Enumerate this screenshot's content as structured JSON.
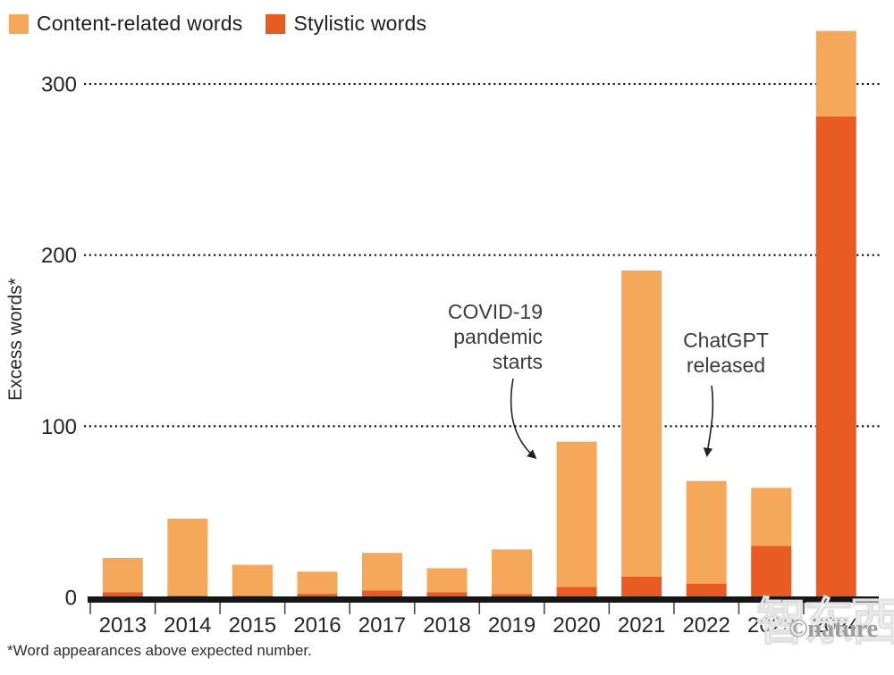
{
  "chart_data": {
    "type": "bar",
    "stacked": true,
    "title": "",
    "categories": [
      "2013",
      "2014",
      "2015",
      "2016",
      "2017",
      "2018",
      "2019",
      "2020",
      "2021",
      "2022",
      "2023",
      "2024"
    ],
    "series": [
      {
        "name": "Content-related words",
        "color": "#F6A85A",
        "values": [
          20,
          45,
          18,
          13,
          22,
          14,
          26,
          85,
          179,
          60,
          34,
          50
        ]
      },
      {
        "name": "Stylistic words",
        "color": "#E85C23",
        "values": [
          3,
          1,
          1,
          2,
          4,
          3,
          2,
          6,
          12,
          8,
          30,
          281
        ]
      }
    ],
    "xlabel": "",
    "ylabel": "Excess words*",
    "ylim": [
      0,
      345
    ],
    "yticks": [
      0,
      100,
      200,
      300
    ],
    "ytick_labels": [
      "0",
      "100",
      "200",
      "300"
    ],
    "grid": "dotted-horizontal",
    "legend_position": "top-left",
    "annotations": [
      {
        "id": "covid",
        "lines": [
          "COVID-19",
          "pandemic",
          "starts"
        ],
        "target_year": "2020"
      },
      {
        "id": "chatgpt",
        "lines": [
          "ChatGPT",
          "released"
        ],
        "target_year": "2022"
      }
    ],
    "footnote": "*Word appearances above expected number."
  },
  "watermark": {
    "cn": "智东西",
    "credit": "©nature"
  },
  "colors": {
    "axis": "#161616",
    "grid": "#161616",
    "tick": "#4a4a4a",
    "label_text": "#262626",
    "annotation_text": "#3c3c3c",
    "arrow": "#222222",
    "watermark_credit": "#9d9d9d"
  }
}
